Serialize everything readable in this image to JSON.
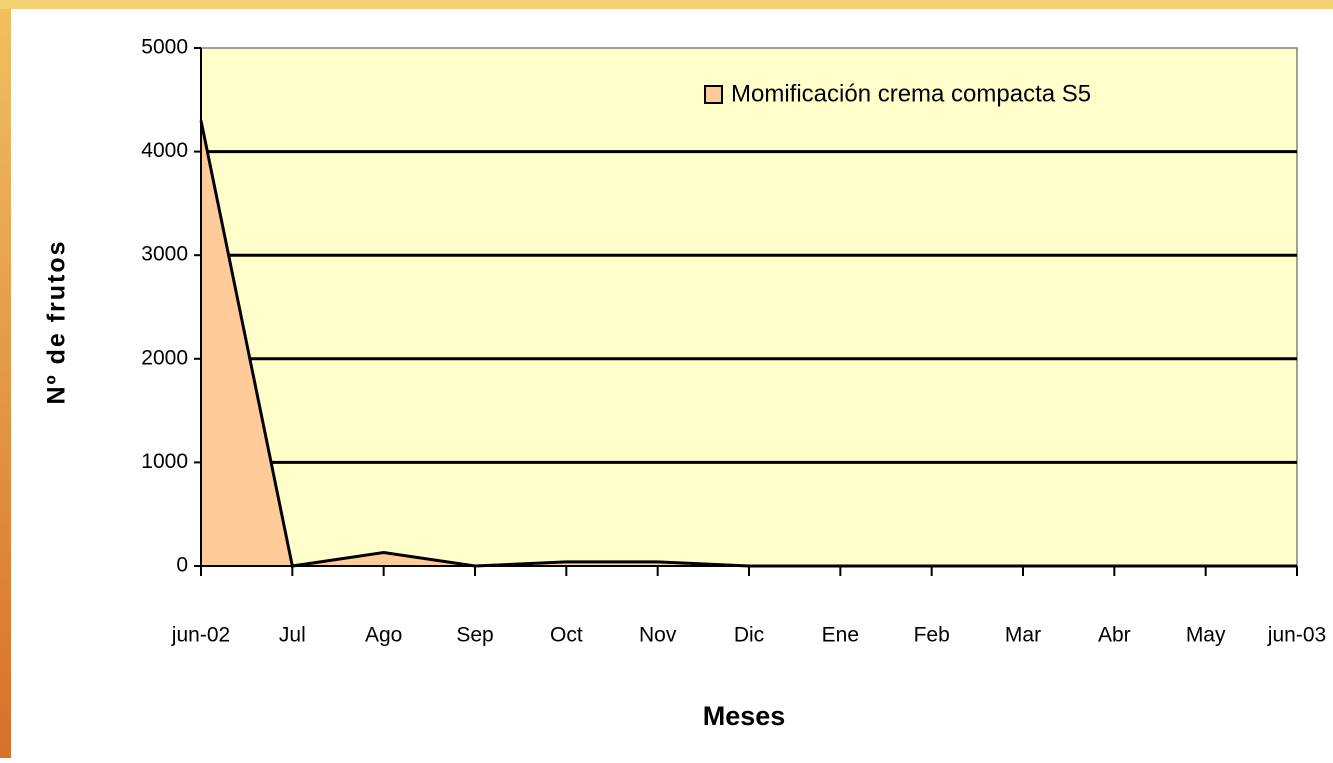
{
  "chart_data": {
    "type": "area",
    "categories": [
      "jun-02",
      "Jul",
      "Ago",
      "Sep",
      "Oct",
      "Nov",
      "Dic",
      "Ene",
      "Feb",
      "Mar",
      "Abr",
      "May",
      "jun-03"
    ],
    "series": [
      {
        "name": "Momificación crema compacta S5",
        "color": "#ffcc99",
        "values": [
          4300,
          0,
          130,
          0,
          40,
          40,
          0,
          0,
          0,
          0,
          0,
          0,
          0
        ]
      }
    ],
    "ylim": [
      0,
      5000
    ],
    "yticks": [
      0,
      1000,
      2000,
      3000,
      4000,
      5000
    ],
    "grid": true,
    "x_label": "Meses",
    "y_label": "Nº de frutos",
    "plot_background": "#ffffcc"
  }
}
